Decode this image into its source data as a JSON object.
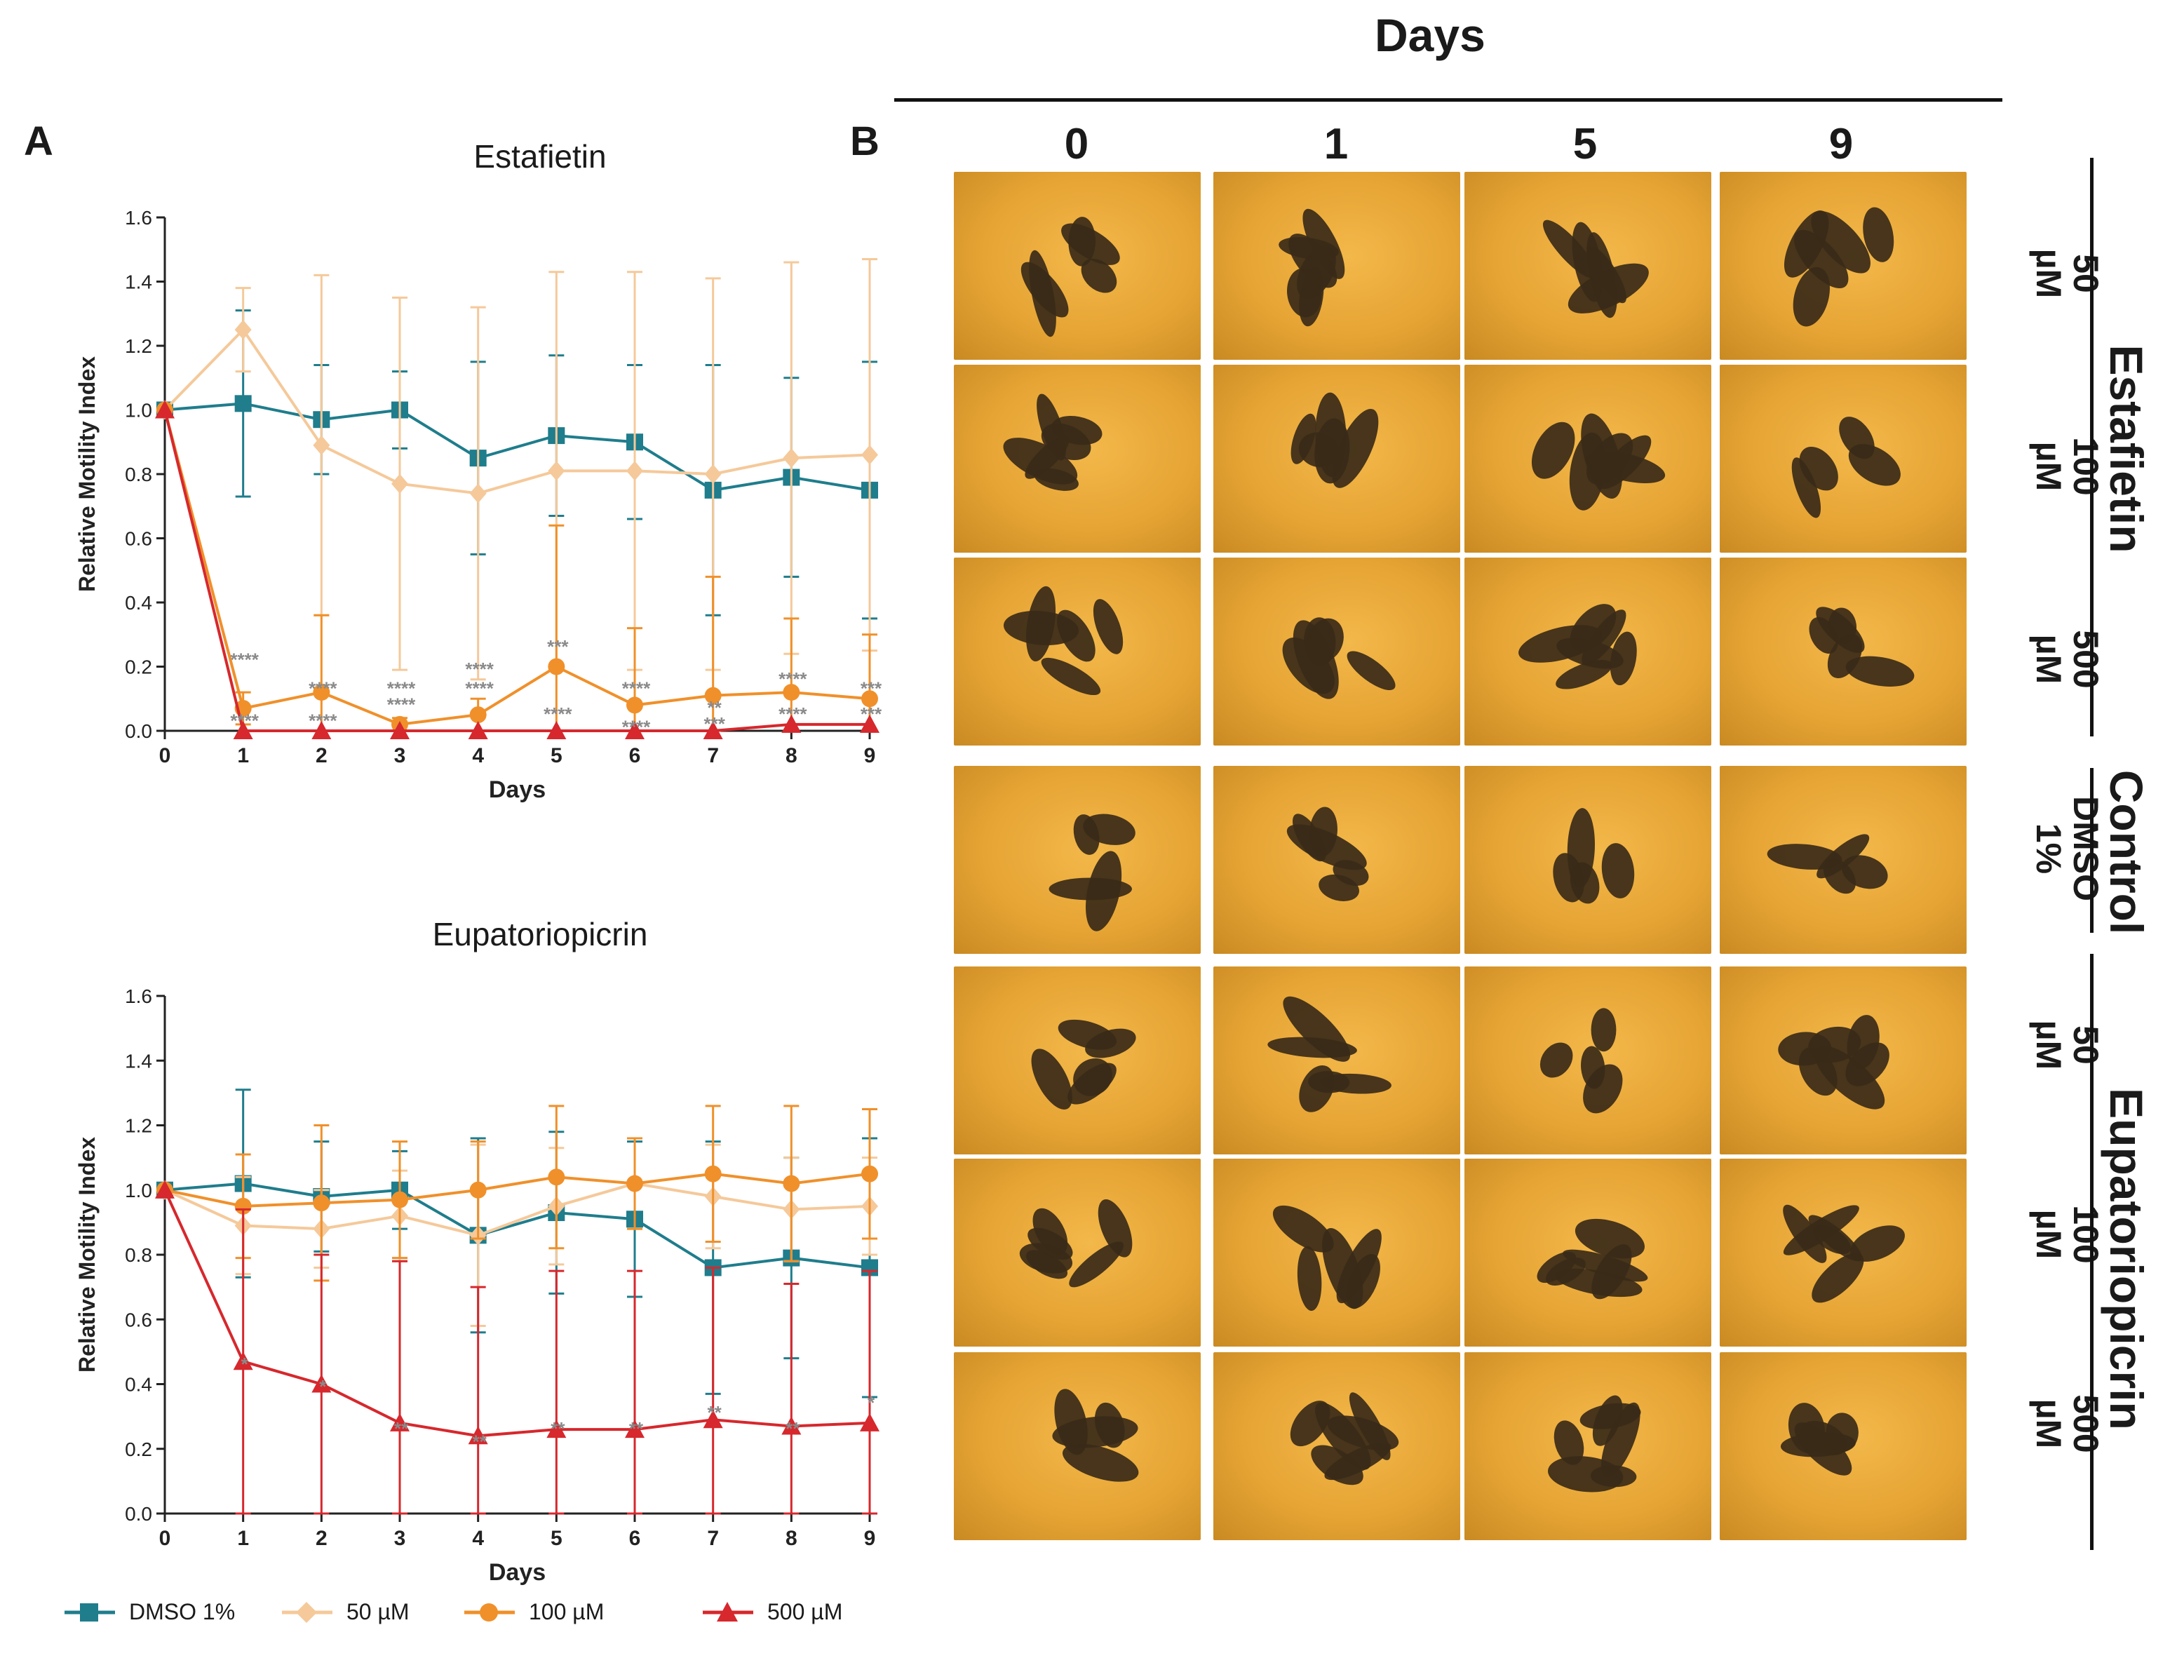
{
  "panel_a_label": "A",
  "panel_b_label": "B",
  "days_header": "Days",
  "chart_data": [
    {
      "type": "line",
      "title": "Estafietin",
      "xlabel": "Days",
      "ylabel": "Relative Motility Index",
      "xlim": [
        0,
        9
      ],
      "ylim": [
        0,
        1.6
      ],
      "x": [
        0,
        1,
        2,
        3,
        4,
        5,
        6,
        7,
        8,
        9
      ],
      "yticks": [
        "0.0",
        "0.2",
        "0.4",
        "0.6",
        "0.8",
        "1.0",
        "1.2",
        "1.4",
        "1.6"
      ],
      "series": [
        {
          "name": "DMSO 1%",
          "color": "#1f7d8c",
          "marker": "square",
          "values": [
            1.0,
            1.02,
            0.97,
            1.0,
            0.85,
            0.92,
            0.9,
            0.75,
            0.79,
            0.75
          ],
          "err": [
            0,
            0.29,
            0.17,
            0.12,
            0.3,
            0.25,
            0.24,
            0.39,
            0.31,
            0.4
          ]
        },
        {
          "name": "50 µM",
          "color": "#f5c99a",
          "marker": "diamond",
          "values": [
            1.0,
            1.25,
            0.89,
            0.77,
            0.74,
            0.81,
            0.81,
            0.8,
            0.85,
            0.86
          ],
          "err": [
            0,
            0.13,
            0.53,
            0.58,
            0.58,
            0.62,
            0.62,
            0.61,
            0.61,
            0.61
          ]
        },
        {
          "name": "100 µM",
          "color": "#f0902a",
          "marker": "circle",
          "values": [
            1.0,
            0.07,
            0.12,
            0.02,
            0.05,
            0.2,
            0.08,
            0.11,
            0.12,
            0.1
          ],
          "err": [
            0,
            0.05,
            0.24,
            0.02,
            0.05,
            0.44,
            0.24,
            0.37,
            0.23,
            0.2
          ]
        },
        {
          "name": "500 µM",
          "color": "#d6282d",
          "marker": "triangle",
          "values": [
            1.0,
            0.0,
            0.0,
            0.0,
            0.0,
            0.0,
            0.0,
            0.0,
            0.02,
            0.02
          ],
          "err": [
            0,
            0,
            0,
            0,
            0,
            0,
            0,
            0,
            0,
            0
          ]
        }
      ],
      "annotations": [
        {
          "x": 1,
          "y": 0.22,
          "text": "****"
        },
        {
          "x": 1,
          "y": 0.03,
          "text": "****"
        },
        {
          "x": 2,
          "y": 0.13,
          "text": "****"
        },
        {
          "x": 2,
          "y": 0.03,
          "text": "****"
        },
        {
          "x": 3,
          "y": 0.13,
          "text": "****"
        },
        {
          "x": 3,
          "y": 0.08,
          "text": "****"
        },
        {
          "x": 4,
          "y": 0.19,
          "text": "****"
        },
        {
          "x": 4,
          "y": 0.13,
          "text": "****"
        },
        {
          "x": 5,
          "y": 0.26,
          "text": "***"
        },
        {
          "x": 5,
          "y": 0.05,
          "text": "****"
        },
        {
          "x": 6,
          "y": 0.13,
          "text": "****"
        },
        {
          "x": 6,
          "y": 0.01,
          "text": "****"
        },
        {
          "x": 7,
          "y": 0.07,
          "text": "**"
        },
        {
          "x": 7,
          "y": 0.02,
          "text": "***"
        },
        {
          "x": 8,
          "y": 0.16,
          "text": "****"
        },
        {
          "x": 8,
          "y": 0.05,
          "text": "****"
        },
        {
          "x": 9,
          "y": 0.13,
          "text": "***"
        },
        {
          "x": 9,
          "y": 0.05,
          "text": "***"
        }
      ]
    },
    {
      "type": "line",
      "title": "Eupatoriopicrin",
      "xlabel": "Days",
      "ylabel": "Relative Motility Index",
      "xlim": [
        0,
        9
      ],
      "ylim": [
        0,
        1.6
      ],
      "x": [
        0,
        1,
        2,
        3,
        4,
        5,
        6,
        7,
        8,
        9
      ],
      "yticks": [
        "0.0",
        "0.2",
        "0.4",
        "0.6",
        "0.8",
        "1.0",
        "1.2",
        "1.4",
        "1.6"
      ],
      "series": [
        {
          "name": "DMSO 1%",
          "color": "#1f7d8c",
          "marker": "square",
          "values": [
            1.0,
            1.02,
            0.98,
            1.0,
            0.86,
            0.93,
            0.91,
            0.76,
            0.79,
            0.76
          ],
          "err": [
            0,
            0.29,
            0.17,
            0.12,
            0.3,
            0.25,
            0.24,
            0.39,
            0.31,
            0.4
          ]
        },
        {
          "name": "50 µM",
          "color": "#f5c99a",
          "marker": "diamond",
          "values": [
            1.0,
            0.89,
            0.88,
            0.92,
            0.86,
            0.95,
            1.02,
            0.98,
            0.94,
            0.95
          ],
          "err": [
            0,
            0.15,
            0.12,
            0.14,
            0.28,
            0.18,
            0.14,
            0.16,
            0.16,
            0.15
          ]
        },
        {
          "name": "100 µM",
          "color": "#f0902a",
          "marker": "circle",
          "values": [
            1.0,
            0.95,
            0.96,
            0.97,
            1.0,
            1.04,
            1.02,
            1.05,
            1.02,
            1.05
          ],
          "err": [
            0,
            0.16,
            0.24,
            0.18,
            0.15,
            0.22,
            0.14,
            0.21,
            0.24,
            0.2
          ]
        },
        {
          "name": "500 µM",
          "color": "#d6282d",
          "marker": "triangle",
          "values": [
            1.0,
            0.47,
            0.4,
            0.28,
            0.24,
            0.26,
            0.26,
            0.29,
            0.27,
            0.28
          ],
          "err": [
            0,
            0.47,
            0.4,
            0.5,
            0.46,
            0.49,
            0.49,
            0.47,
            0.44,
            0.47
          ]
        }
      ],
      "annotations": [
        {
          "x": 1,
          "y": 0.46,
          "text": "*"
        },
        {
          "x": 2,
          "y": 0.39,
          "text": "*"
        },
        {
          "x": 3,
          "y": 0.26,
          "text": "**"
        },
        {
          "x": 4,
          "y": 0.22,
          "text": "**"
        },
        {
          "x": 5,
          "y": 0.26,
          "text": "**"
        },
        {
          "x": 6,
          "y": 0.26,
          "text": "**"
        },
        {
          "x": 7,
          "y": 0.31,
          "text": "**"
        },
        {
          "x": 8,
          "y": 0.26,
          "text": "**"
        },
        {
          "x": 9,
          "y": 0.34,
          "text": "*"
        }
      ]
    }
  ],
  "legend": [
    {
      "label": "DMSO 1%",
      "color": "#1f7d8c",
      "marker": "square"
    },
    {
      "label": "50 µM",
      "color": "#f5c99a",
      "marker": "diamond"
    },
    {
      "label": "100 µM",
      "color": "#f0902a",
      "marker": "circle"
    },
    {
      "label": "500 µM",
      "color": "#d6282d",
      "marker": "triangle"
    }
  ],
  "panel_b": {
    "columns": [
      "0",
      "1",
      "5",
      "9"
    ],
    "rows": [
      {
        "line1": "50",
        "line2": "µM"
      },
      {
        "line1": "100",
        "line2": "µM"
      },
      {
        "line1": "500",
        "line2": "µM"
      },
      {
        "line1": "DMSO",
        "line2": "1%"
      },
      {
        "line1": "50",
        "line2": "µM"
      },
      {
        "line1": "100",
        "line2": "µM"
      },
      {
        "line1": "500",
        "line2": "µM"
      }
    ],
    "groups": [
      "Estafietin",
      "Control",
      "Eupatoriopicrin"
    ]
  }
}
